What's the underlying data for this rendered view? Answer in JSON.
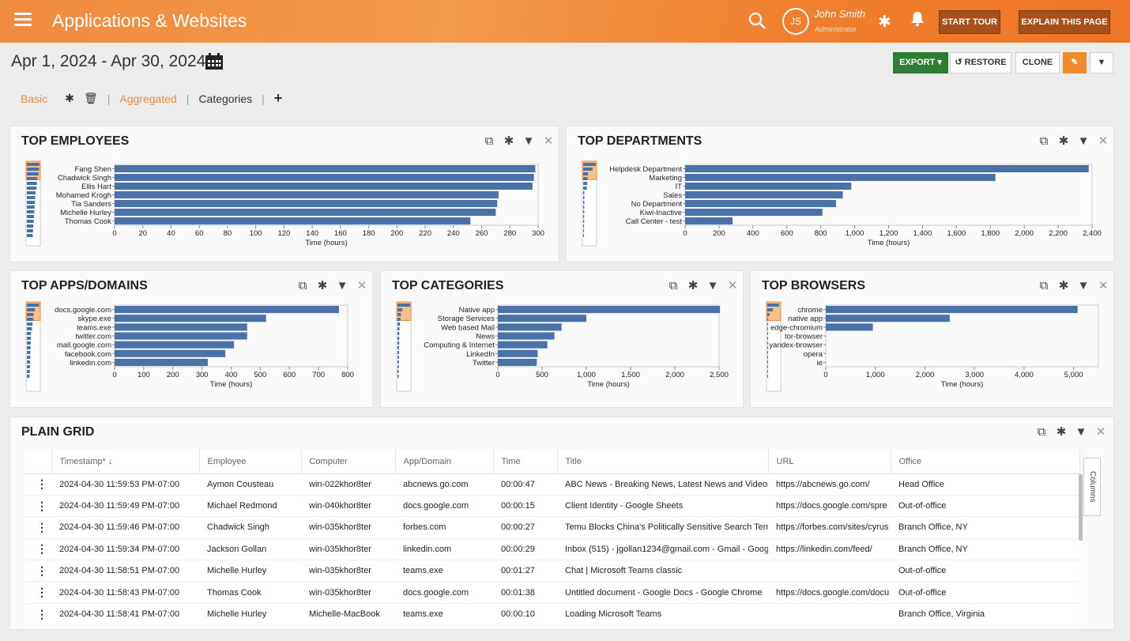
{
  "header": {
    "title": "Applications & Websites",
    "user_initials": "JS",
    "user_name": "John Smith",
    "user_role": "Administrator",
    "start_tour": "START TOUR",
    "explain": "EXPLAIN THIS PAGE"
  },
  "toolbar": {
    "date_range": "Apr 1, 2024 - Apr 30, 2024",
    "export": "EXPORT ▾",
    "restore": "↺ RESTORE",
    "clone": "CLONE",
    "edit_icon": "✎",
    "filter_icon": "▼"
  },
  "tabs": {
    "basic": "Basic",
    "aggregated": "Aggregated",
    "categories": "Categories",
    "add": "+"
  },
  "panels": {
    "employees": "TOP EMPLOYEES",
    "departments": "TOP DEPARTMENTS",
    "apps": "TOP APPS/DOMAINS",
    "categories": "TOP CATEGORIES",
    "browsers": "TOP BROWSERS",
    "grid": "PLAIN GRID"
  },
  "chart_data": [
    {
      "type": "bar",
      "orientation": "horizontal",
      "categories": [
        "Fang Shen",
        "Chadwick Singh",
        "Ellis Hart",
        "Mohamed Krogh",
        "Tia Sanders",
        "Michelle Hurley",
        "Thomas Cook"
      ],
      "values": [
        298,
        297,
        296,
        272,
        271,
        270,
        252
      ],
      "xlabel": "Time (hours)",
      "xlim": [
        0,
        300
      ],
      "xticks": [
        0,
        20,
        40,
        60,
        80,
        100,
        120,
        140,
        160,
        180,
        200,
        220,
        240,
        260,
        280,
        300
      ]
    },
    {
      "type": "bar",
      "orientation": "horizontal",
      "categories": [
        "Helpdesk Department",
        "Marketing",
        "IT",
        "Sales",
        "No Department",
        "Kiwi-Inactive",
        "Call Center - test"
      ],
      "values": [
        2380,
        1830,
        980,
        930,
        890,
        810,
        280
      ],
      "xlabel": "Time (hours)",
      "xlim": [
        0,
        2400
      ],
      "xticks": [
        0,
        200,
        400,
        600,
        800,
        1000,
        1200,
        1400,
        1600,
        1800,
        2000,
        2200,
        2400
      ],
      "xtick_labels": [
        "0",
        "200",
        "400",
        "600",
        "800",
        "1,000",
        "1,200",
        "1,400",
        "1,600",
        "1,800",
        "2,000",
        "2,200",
        "2,400"
      ]
    },
    {
      "type": "bar",
      "orientation": "horizontal",
      "categories": [
        "docs.google.com",
        "skype.exe",
        "teams.exe",
        "twitter.com",
        "mail.google.com",
        "facebook.com",
        "linkedin.com"
      ],
      "values": [
        770,
        520,
        455,
        455,
        410,
        380,
        320
      ],
      "xlabel": "Time (hours)",
      "xlim": [
        0,
        800
      ],
      "xticks": [
        0,
        100,
        200,
        300,
        400,
        500,
        600,
        700,
        800
      ]
    },
    {
      "type": "bar",
      "orientation": "horizontal",
      "categories": [
        "Native app",
        "Storage Services",
        "Web based Mail",
        "News",
        "Computing & Internet",
        "LinkedIn",
        "Twitter"
      ],
      "values": [
        2510,
        1000,
        720,
        640,
        560,
        450,
        440
      ],
      "xlabel": "Time (hours)",
      "xlim": [
        0,
        2500
      ],
      "xticks": [
        0,
        500,
        1000,
        1500,
        2000,
        2500
      ],
      "xtick_labels": [
        "0",
        "500",
        "1,000",
        "1,500",
        "2,000",
        "2,500"
      ]
    },
    {
      "type": "bar",
      "orientation": "horizontal",
      "categories": [
        "chrome",
        "native app",
        "edge-chromium",
        "tor-browser",
        "yandex-browser",
        "opera",
        "ie"
      ],
      "values": [
        5080,
        2500,
        950,
        0,
        0,
        0,
        0
      ],
      "xlabel": "Time (hours)",
      "xlim": [
        0,
        5500
      ],
      "xticks": [
        0,
        1000,
        2000,
        3000,
        4000,
        5000
      ],
      "xtick_labels": [
        "0",
        "1,000",
        "2,000",
        "3,000",
        "4,000",
        "5,000"
      ]
    }
  ],
  "grid": {
    "columns": [
      "Timestamp* ↓",
      "Employee",
      "Computer",
      "App/Domain",
      "Time",
      "Title",
      "URL",
      "Office"
    ],
    "columns_tab": "Columns",
    "rows": [
      [
        "2024-04-30 11:59:53 PM-07:00",
        "Aymon Cousteau",
        "win-022khor8ter",
        "abcnews.go.com",
        "00:00:47",
        "ABC News - Breaking News, Latest News and Videos",
        "https://abcnews.go.com/",
        "Head Office"
      ],
      [
        "2024-04-30 11:59:49 PM-07:00",
        "Michael Redmond",
        "win-040khor8ter",
        "docs.google.com",
        "00:00:15",
        "Client Identity - Google Sheets",
        "https://docs.google.com/spre",
        "Out-of-office"
      ],
      [
        "2024-04-30 11:59:46 PM-07:00",
        "Chadwick Singh",
        "win-035khor8ter",
        "forbes.com",
        "00:00:27",
        "Temu Blocks China's Politically Sensitive Search Terms",
        "https://forbes.com/sites/cyrus",
        "Branch Office, NY"
      ],
      [
        "2024-04-30 11:59:34 PM-07:00",
        "Jackson Gollan",
        "win-035khor8ter",
        "linkedin.com",
        "00:00:29",
        "Inbox (515) - jgollan1234@gmail.com - Gmail - Goog",
        "https://linkedin.com/feed/",
        "Branch Office, NY"
      ],
      [
        "2024-04-30 11:58:51 PM-07:00",
        "Michelle Hurley",
        "win-035khor8ter",
        "teams.exe",
        "00:01:27",
        "Chat | Microsoft Teams classic",
        "",
        "Out-of-office"
      ],
      [
        "2024-04-30 11:58:43 PM-07:00",
        "Thomas Cook",
        "win-035khor8ter",
        "docs.google.com",
        "00:01:38",
        "Untitled document - Google Docs - Google Chrome",
        "https://docs.google.com/docu",
        "Out-of-office"
      ],
      [
        "2024-04-30 11:58:41 PM-07:00",
        "Michelle Hurley",
        "Michelle-MacBook",
        "teams.exe",
        "00:00:10",
        "Loading Microsoft Teams",
        "",
        "Branch Office, Virginia"
      ]
    ]
  },
  "colors": {
    "accent": "#f08a3e",
    "bar": "#4a72a8",
    "export": "#2e7d32",
    "link": "#b2522a"
  }
}
